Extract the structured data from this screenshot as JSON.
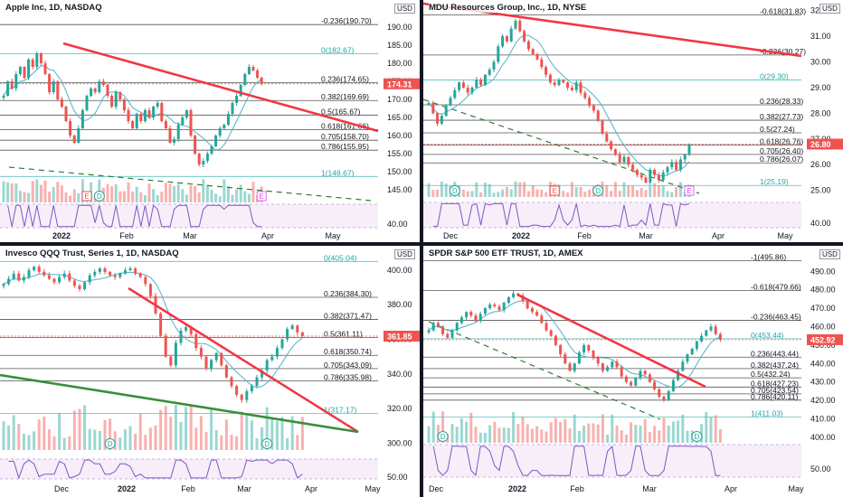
{
  "chart_data": [
    {
      "id": "aapl",
      "type": "candlestick",
      "title": "Apple Inc, 1D, NASDAQ",
      "currency": "USD",
      "last_price": "174.31",
      "ylim": [
        142,
        194
      ],
      "y_ticks": [
        "190.00",
        "185.00",
        "180.00",
        "175.00",
        "170.00",
        "165.00",
        "160.00",
        "155.00",
        "150.00",
        "145.00"
      ],
      "x_ticks": [
        "2022",
        "Feb",
        "Mar",
        "Apr",
        "May"
      ],
      "rsi_tick": "40.00",
      "fib_levels": [
        {
          "label": "-0.236(190.70)",
          "value": 190.7
        },
        {
          "label": "0(182.67)",
          "value": 182.67
        },
        {
          "label": "0.236(174.65)",
          "value": 174.65
        },
        {
          "label": "0.382(169.69)",
          "value": 169.69
        },
        {
          "label": "0.5(165.67)",
          "value": 165.67
        },
        {
          "label": "0.618(161.66)",
          "value": 161.66
        },
        {
          "label": "0.705(158.70)",
          "value": 158.7
        },
        {
          "label": "0.786(155.95)",
          "value": 155.95
        },
        {
          "label": "1(148.67)",
          "value": 148.67
        }
      ],
      "closes": [
        171,
        175,
        173,
        177,
        179,
        176,
        181,
        179,
        182.7,
        180,
        177,
        172,
        175,
        170,
        168,
        164,
        160,
        158,
        162,
        167,
        171,
        173,
        172,
        175,
        174,
        171,
        168,
        172,
        170,
        167,
        164,
        162,
        166,
        164,
        167,
        165,
        168,
        169,
        164,
        162,
        158,
        159,
        163,
        165,
        167,
        160,
        155,
        152,
        153,
        155,
        157,
        160,
        162,
        163,
        166,
        169,
        171,
        174,
        177,
        179,
        178,
        176,
        174.3
      ],
      "events": [
        {
          "label": "E",
          "bar": 20
        },
        {
          "label": "D",
          "bar": 23
        },
        {
          "label": "E",
          "bar": 62,
          "hollow": true
        }
      ]
    },
    {
      "id": "mdu",
      "type": "candlestick",
      "title": "MDU Resources Group, Inc., 1D, NYSE",
      "currency": "USD",
      "last_price": "26.80",
      "ylim": [
        24.6,
        32.2
      ],
      "y_ticks": [
        "32.00",
        "31.00",
        "30.00",
        "29.00",
        "28.00",
        "27.00",
        "26.00",
        "25.00"
      ],
      "x_ticks": [
        "Dec",
        "2022",
        "Feb",
        "Mar",
        "Apr",
        "May"
      ],
      "rsi_tick": "40.00",
      "fib_levels": [
        {
          "label": "-0.618(31.83)",
          "value": 31.83
        },
        {
          "label": "-0.236(30.27)",
          "value": 30.27
        },
        {
          "label": "0(29.30)",
          "value": 29.3
        },
        {
          "label": "0.236(28.33)",
          "value": 28.33
        },
        {
          "label": "0.382(27.73)",
          "value": 27.73
        },
        {
          "label": "0.5(27.24)",
          "value": 27.24
        },
        {
          "label": "0.618(26.76)",
          "value": 26.76
        },
        {
          "label": "0.705(26.40)",
          "value": 26.4
        },
        {
          "label": "0.786(26.07)",
          "value": 26.07
        },
        {
          "label": "1(25.19)",
          "value": 25.19
        }
      ],
      "closes": [
        28.4,
        28.0,
        27.6,
        27.9,
        28.3,
        28.6,
        28.9,
        29.2,
        29.0,
        28.8,
        29.0,
        29.3,
        29.1,
        29.5,
        29.7,
        30.0,
        30.6,
        31.0,
        30.8,
        31.3,
        31.6,
        31.2,
        30.8,
        30.5,
        30.3,
        30.1,
        29.8,
        29.5,
        29.2,
        29.1,
        29.3,
        29.2,
        29.0,
        28.9,
        29.2,
        28.8,
        28.6,
        28.3,
        28.1,
        27.7,
        27.2,
        26.9,
        26.6,
        26.4,
        26.1,
        26.3,
        26.0,
        25.8,
        25.6,
        25.5,
        25.3,
        25.8,
        25.6,
        25.4,
        25.7,
        25.9,
        26.1,
        25.8,
        26.2,
        26.4,
        26.8
      ],
      "events": [
        {
          "label": "D",
          "bar": 6
        },
        {
          "label": "E",
          "bar": 29
        },
        {
          "label": "D",
          "bar": 39
        },
        {
          "label": "E",
          "bar": 60,
          "hollow": true
        }
      ]
    },
    {
      "id": "qqq",
      "type": "candlestick",
      "title": "Invesco QQQ Trust, Series 1, 1D, NASDAQ",
      "currency": "USD",
      "last_price": "361.85",
      "ylim": [
        296,
        412
      ],
      "y_ticks": [
        "400.00",
        "380.00",
        "360.00",
        "340.00",
        "320.00",
        "300.00"
      ],
      "x_ticks": [
        "Dec",
        "2022",
        "Feb",
        "Mar",
        "Apr",
        "May"
      ],
      "rsi_tick": "50.00",
      "fib_levels": [
        {
          "label": "0(405.04)",
          "value": 405.04
        },
        {
          "label": "0.236(384.30)",
          "value": 384.3
        },
        {
          "label": "0.382(371.47)",
          "value": 371.47
        },
        {
          "label": "0.5(361.11)",
          "value": 361.11
        },
        {
          "label": "0.618(350.74)",
          "value": 350.74
        },
        {
          "label": "0.705(343.09)",
          "value": 343.09
        },
        {
          "label": "0.786(335.98)",
          "value": 335.98
        },
        {
          "label": "1(317.17)",
          "value": 317.17
        }
      ],
      "closes": [
        392,
        395,
        398,
        394,
        396,
        400,
        402,
        399,
        397,
        395,
        393,
        396,
        398,
        394,
        391,
        389,
        393,
        397,
        399,
        401,
        399,
        397,
        396,
        398,
        400,
        401,
        398,
        396,
        392,
        385,
        375,
        362,
        350,
        345,
        358,
        365,
        367,
        363,
        355,
        350,
        343,
        348,
        352,
        345,
        338,
        333,
        328,
        325,
        330,
        333,
        338,
        342,
        348,
        350,
        355,
        360,
        366,
        368,
        364,
        362
      ],
      "events": [
        {
          "label": "D",
          "bar": 21
        },
        {
          "label": "D",
          "bar": 52
        }
      ]
    },
    {
      "id": "spy",
      "type": "candlestick",
      "title": "SPDR S&P 500 ETF TRUST, 1D, AMEX",
      "currency": "USD",
      "last_price": "452.92",
      "ylim": [
        396,
        498
      ],
      "y_ticks": [
        "490.00",
        "480.00",
        "470.00",
        "460.00",
        "450.00",
        "440.00",
        "430.00",
        "420.00",
        "410.00",
        "400.00"
      ],
      "x_ticks": [
        "Dec",
        "2022",
        "Feb",
        "Mar",
        "Apr",
        "May"
      ],
      "rsi_tick": "50.00",
      "fib_levels": [
        {
          "label": "-1(495.86)",
          "value": 495.86
        },
        {
          "label": "-0.618(479.66)",
          "value": 479.66
        },
        {
          "label": "-0.236(463.45)",
          "value": 463.45
        },
        {
          "label": "0(453.44)",
          "value": 453.44
        },
        {
          "label": "0.236(443.44)",
          "value": 443.44
        },
        {
          "label": "0.382(437.24)",
          "value": 437.24
        },
        {
          "label": "0.5(432.24)",
          "value": 432.24
        },
        {
          "label": "0.618(427.23)",
          "value": 427.23
        },
        {
          "label": "0.705(423.54)",
          "value": 423.54
        },
        {
          "label": "0.786(420.11)",
          "value": 420.11
        },
        {
          "label": "1(411.03)",
          "value": 411.03
        }
      ],
      "closes": [
        458,
        462,
        460,
        456,
        454,
        458,
        462,
        465,
        468,
        466,
        463,
        467,
        470,
        472,
        471,
        469,
        473,
        476,
        478,
        477,
        474,
        470,
        468,
        466,
        462,
        458,
        455,
        450,
        445,
        440,
        436,
        440,
        446,
        450,
        447,
        443,
        440,
        436,
        438,
        441,
        438,
        433,
        430,
        428,
        432,
        436,
        434,
        430,
        426,
        422,
        420,
        425,
        431,
        436,
        441,
        445,
        448,
        452,
        455,
        458,
        460,
        456,
        452.9
      ],
      "events": [
        {
          "label": "D",
          "bar": 3
        },
        {
          "label": "D",
          "bar": 57
        }
      ]
    }
  ]
}
